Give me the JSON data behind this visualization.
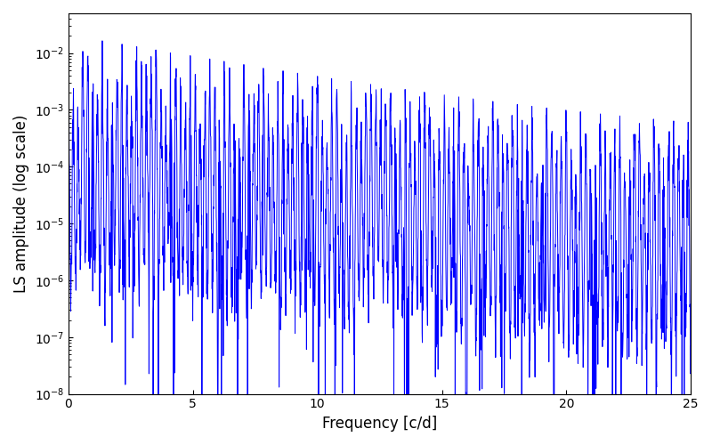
{
  "freq_min": 0.0,
  "freq_max": 25.0,
  "n_points": 3000,
  "ylabel": "LS amplitude (log scale)",
  "xlabel": "Frequency [c/d]",
  "line_color": "#0000ff",
  "line_width": 0.7,
  "ylim_min": 1e-08,
  "ylim_max": 0.05,
  "xlim_min": 0.0,
  "xlim_max": 25.0,
  "background_color": "#ffffff",
  "seed": 137
}
